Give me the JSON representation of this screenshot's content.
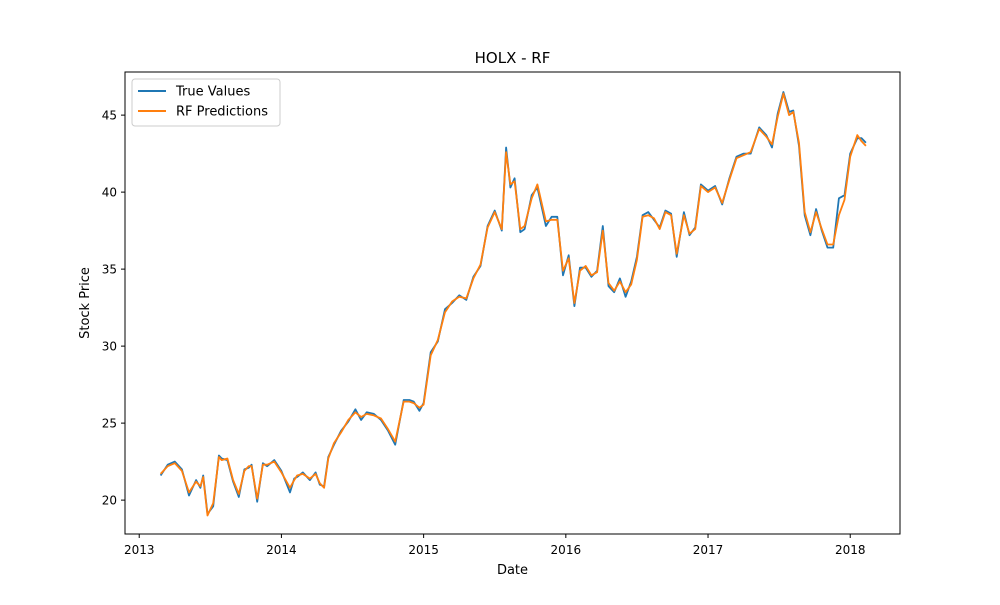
{
  "chart_data": {
    "type": "line",
    "title": "HOLX - RF",
    "xlabel": "Date",
    "ylabel": "Stock Price",
    "xlim": [
      2012.9,
      2018.35
    ],
    "ylim": [
      17.8,
      47.8
    ],
    "grid": false,
    "legend_position": "top-left",
    "x_ticks": [
      2013,
      2014,
      2015,
      2016,
      2017,
      2018
    ],
    "x_tick_labels": [
      "2013",
      "2014",
      "2015",
      "2016",
      "2017",
      "2018"
    ],
    "y_ticks": [
      20,
      25,
      30,
      35,
      40,
      45
    ],
    "y_tick_labels": [
      "20",
      "25",
      "30",
      "35",
      "40",
      "45"
    ],
    "series": [
      {
        "name": "True Values",
        "color": "#1f77b4",
        "x": [
          2013.15,
          2013.2,
          2013.25,
          2013.3,
          2013.35,
          2013.4,
          2013.43,
          2013.45,
          2013.48,
          2013.52,
          2013.56,
          2013.58,
          2013.62,
          2013.66,
          2013.7,
          2013.74,
          2013.77,
          2013.79,
          2013.83,
          2013.87,
          2013.9,
          2013.95,
          2014.0,
          2014.06,
          2014.09,
          2014.11,
          2014.15,
          2014.2,
          2014.24,
          2014.27,
          2014.3,
          2014.33,
          2014.37,
          2014.42,
          2014.47,
          2014.52,
          2014.56,
          2014.6,
          2014.65,
          2014.7,
          2014.75,
          2014.8,
          2014.86,
          2014.9,
          2014.93,
          2014.97,
          2015.0,
          2015.05,
          2015.1,
          2015.15,
          2015.2,
          2015.25,
          2015.3,
          2015.35,
          2015.4,
          2015.45,
          2015.5,
          2015.55,
          2015.58,
          2015.61,
          2015.64,
          2015.68,
          2015.71,
          2015.76,
          2015.8,
          2015.86,
          2015.9,
          2015.94,
          2015.98,
          2016.02,
          2016.06,
          2016.1,
          2016.14,
          2016.18,
          2016.22,
          2016.26,
          2016.3,
          2016.34,
          2016.38,
          2016.42,
          2016.46,
          2016.5,
          2016.54,
          2016.58,
          2016.62,
          2016.66,
          2016.7,
          2016.74,
          2016.78,
          2016.83,
          2016.87,
          2016.91,
          2016.95,
          2017.0,
          2017.05,
          2017.1,
          2017.15,
          2017.2,
          2017.25,
          2017.3,
          2017.36,
          2017.41,
          2017.45,
          2017.49,
          2017.53,
          2017.57,
          2017.6,
          2017.64,
          2017.68,
          2017.72,
          2017.76,
          2017.8,
          2017.84,
          2017.88,
          2017.92,
          2017.96,
          2018.0,
          2018.05,
          2018.08,
          2018.11
        ],
        "y": [
          21.6,
          22.3,
          22.5,
          22.0,
          20.3,
          21.3,
          20.8,
          21.6,
          19.1,
          19.6,
          22.9,
          22.7,
          22.6,
          21.2,
          20.2,
          22.0,
          22.1,
          22.3,
          19.9,
          22.4,
          22.2,
          22.6,
          21.9,
          20.5,
          21.4,
          21.5,
          21.8,
          21.3,
          21.8,
          21.0,
          20.9,
          22.8,
          23.6,
          24.5,
          25.1,
          25.9,
          25.2,
          25.7,
          25.6,
          25.2,
          24.5,
          23.6,
          26.5,
          26.5,
          26.4,
          25.8,
          26.3,
          29.6,
          30.3,
          32.4,
          32.8,
          33.3,
          33.0,
          34.5,
          35.2,
          37.8,
          38.8,
          37.5,
          42.9,
          40.3,
          40.9,
          37.4,
          37.6,
          39.8,
          40.3,
          37.8,
          38.4,
          38.4,
          34.6,
          35.9,
          32.6,
          35.1,
          35.1,
          34.5,
          34.9,
          37.8,
          33.9,
          33.5,
          34.4,
          33.2,
          34.2,
          35.8,
          38.5,
          38.7,
          38.2,
          37.7,
          38.8,
          38.6,
          35.8,
          38.7,
          37.2,
          37.7,
          40.5,
          40.1,
          40.4,
          39.2,
          40.9,
          42.3,
          42.5,
          42.5,
          44.2,
          43.7,
          42.9,
          45.1,
          46.5,
          45.2,
          45.3,
          43.0,
          38.5,
          37.2,
          38.9,
          37.5,
          36.4,
          36.4,
          39.6,
          39.8,
          42.5,
          43.5,
          43.5,
          43.2
        ]
      },
      {
        "name": "RF Predictions",
        "color": "#ff7f0e",
        "x": [
          2013.15,
          2013.2,
          2013.25,
          2013.3,
          2013.35,
          2013.4,
          2013.43,
          2013.45,
          2013.48,
          2013.52,
          2013.56,
          2013.58,
          2013.62,
          2013.66,
          2013.7,
          2013.74,
          2013.77,
          2013.79,
          2013.83,
          2013.87,
          2013.9,
          2013.95,
          2014.0,
          2014.06,
          2014.09,
          2014.11,
          2014.15,
          2014.2,
          2014.24,
          2014.27,
          2014.3,
          2014.33,
          2014.37,
          2014.42,
          2014.47,
          2014.52,
          2014.56,
          2014.6,
          2014.65,
          2014.7,
          2014.75,
          2014.8,
          2014.86,
          2014.9,
          2014.93,
          2014.97,
          2015.0,
          2015.05,
          2015.1,
          2015.15,
          2015.2,
          2015.25,
          2015.3,
          2015.35,
          2015.4,
          2015.45,
          2015.5,
          2015.55,
          2015.58,
          2015.61,
          2015.64,
          2015.68,
          2015.71,
          2015.76,
          2015.8,
          2015.86,
          2015.9,
          2015.94,
          2015.98,
          2016.02,
          2016.06,
          2016.1,
          2016.14,
          2016.18,
          2016.22,
          2016.26,
          2016.3,
          2016.34,
          2016.38,
          2016.42,
          2016.46,
          2016.5,
          2016.54,
          2016.58,
          2016.62,
          2016.66,
          2016.7,
          2016.74,
          2016.78,
          2016.83,
          2016.87,
          2016.91,
          2016.95,
          2017.0,
          2017.05,
          2017.1,
          2017.15,
          2017.2,
          2017.25,
          2017.3,
          2017.36,
          2017.41,
          2017.45,
          2017.49,
          2017.53,
          2017.57,
          2017.6,
          2017.64,
          2017.68,
          2017.72,
          2017.76,
          2017.8,
          2017.84,
          2017.88,
          2017.92,
          2017.96,
          2018.0,
          2018.05,
          2018.08,
          2018.11
        ],
        "y": [
          21.7,
          22.2,
          22.4,
          21.9,
          20.5,
          21.2,
          20.9,
          21.5,
          19.0,
          19.8,
          22.8,
          22.6,
          22.7,
          21.3,
          20.4,
          21.9,
          22.2,
          22.2,
          20.1,
          22.3,
          22.3,
          22.5,
          21.8,
          20.8,
          21.3,
          21.6,
          21.7,
          21.4,
          21.7,
          21.1,
          20.8,
          22.7,
          23.7,
          24.4,
          25.2,
          25.7,
          25.4,
          25.6,
          25.5,
          25.3,
          24.6,
          23.8,
          26.4,
          26.4,
          26.3,
          26.0,
          26.2,
          29.4,
          30.4,
          32.2,
          32.9,
          33.2,
          33.1,
          34.4,
          35.3,
          37.7,
          38.7,
          37.6,
          42.6,
          40.5,
          40.7,
          37.6,
          37.8,
          39.6,
          40.5,
          38.1,
          38.2,
          38.2,
          34.9,
          35.7,
          32.8,
          34.9,
          35.2,
          34.6,
          34.8,
          37.5,
          34.1,
          33.6,
          34.2,
          33.5,
          34.0,
          35.6,
          38.4,
          38.5,
          38.3,
          37.6,
          38.7,
          38.5,
          36.0,
          38.5,
          37.3,
          37.6,
          40.4,
          40.0,
          40.3,
          39.3,
          40.8,
          42.2,
          42.4,
          42.6,
          44.1,
          43.6,
          43.1,
          44.9,
          46.4,
          45.0,
          45.2,
          43.2,
          38.7,
          37.4,
          38.7,
          37.6,
          36.6,
          36.6,
          38.5,
          39.5,
          42.3,
          43.7,
          43.3,
          43.0
        ]
      }
    ]
  }
}
